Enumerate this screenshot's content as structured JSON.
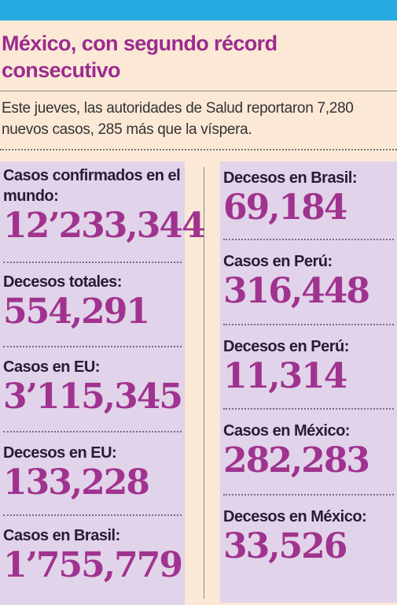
{
  "headline": "México, con segundo récord consecutivo",
  "lede": "Este jueves, las autoridades de Salud reportaron 7,280 nuevos casos, 285 más que la víspera.",
  "stats_left": [
    {
      "label": "Casos confirmados en el mundo:",
      "value": "12’233,344"
    },
    {
      "label": "Decesos totales:",
      "value": "554,291"
    },
    {
      "label": "Casos en EU:",
      "value": "3’115,345"
    },
    {
      "label": "Decesos en EU:",
      "value": "133,228"
    },
    {
      "label": "Casos en Brasil:",
      "value": "1’755,779"
    }
  ],
  "stats_right": [
    {
      "label": "Decesos en Brasil:",
      "value": "69,184"
    },
    {
      "label": "Casos en Perú:",
      "value": "316,448"
    },
    {
      "label": "Decesos en Perú:",
      "value": "11,314"
    },
    {
      "label": "Casos en México:",
      "value": "282,283"
    },
    {
      "label": "Decesos en México:",
      "value": "33,526"
    }
  ],
  "colors": {
    "top_bar": "#27a9e1",
    "headline": "#9c2b8f",
    "numbers": "#a0338f",
    "panel": "#e1d3e9",
    "background": "#fbe9d6"
  }
}
